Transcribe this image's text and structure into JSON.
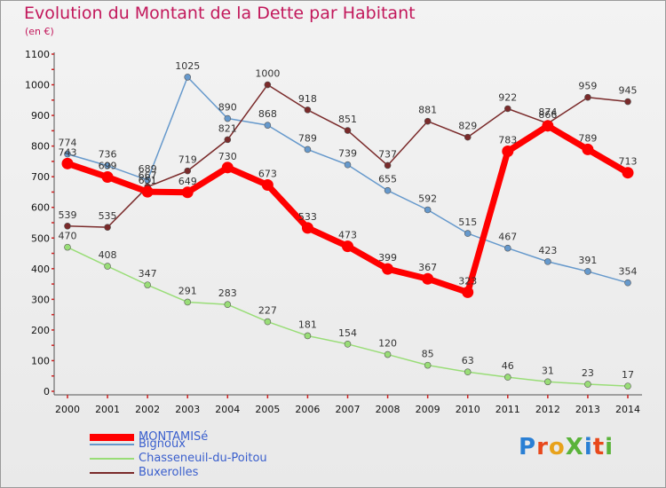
{
  "chart_data": {
    "type": "line",
    "title": "Evolution du Montant de la Dette par Habitant",
    "subtitle": "(en €)",
    "x": [
      "2000",
      "2001",
      "2002",
      "2003",
      "2004",
      "2005",
      "2006",
      "2007",
      "2008",
      "2009",
      "2010",
      "2011",
      "2012",
      "2013",
      "2014"
    ],
    "ylim": [
      0,
      1100
    ],
    "yticks": [
      0,
      100,
      200,
      300,
      400,
      500,
      600,
      700,
      800,
      900,
      1000,
      1100
    ],
    "grid": false,
    "legend_position": "bottom-left",
    "series": [
      {
        "name": "MONTAMISé",
        "color": "#ff0000",
        "values": [
          743,
          699,
          651,
          649,
          730,
          673,
          533,
          473,
          399,
          367,
          323,
          783,
          866,
          789,
          713
        ]
      },
      {
        "name": "Bignoux",
        "color": "#6699cc",
        "values": [
          774,
          736,
          689,
          1025,
          890,
          868,
          789,
          739,
          655,
          592,
          515,
          467,
          423,
          391,
          354
        ]
      },
      {
        "name": "Chasseneuil-du-Poitou",
        "color": "#99dd77",
        "values": [
          470,
          408,
          347,
          291,
          283,
          227,
          181,
          154,
          120,
          85,
          63,
          46,
          31,
          23,
          17
        ]
      },
      {
        "name": "Buxerolles",
        "color": "#7a2a2a",
        "values": [
          539,
          535,
          667,
          719,
          821,
          1000,
          918,
          851,
          737,
          881,
          829,
          922,
          874,
          959,
          945
        ]
      }
    ]
  },
  "logo": {
    "text": "ProXiti"
  }
}
